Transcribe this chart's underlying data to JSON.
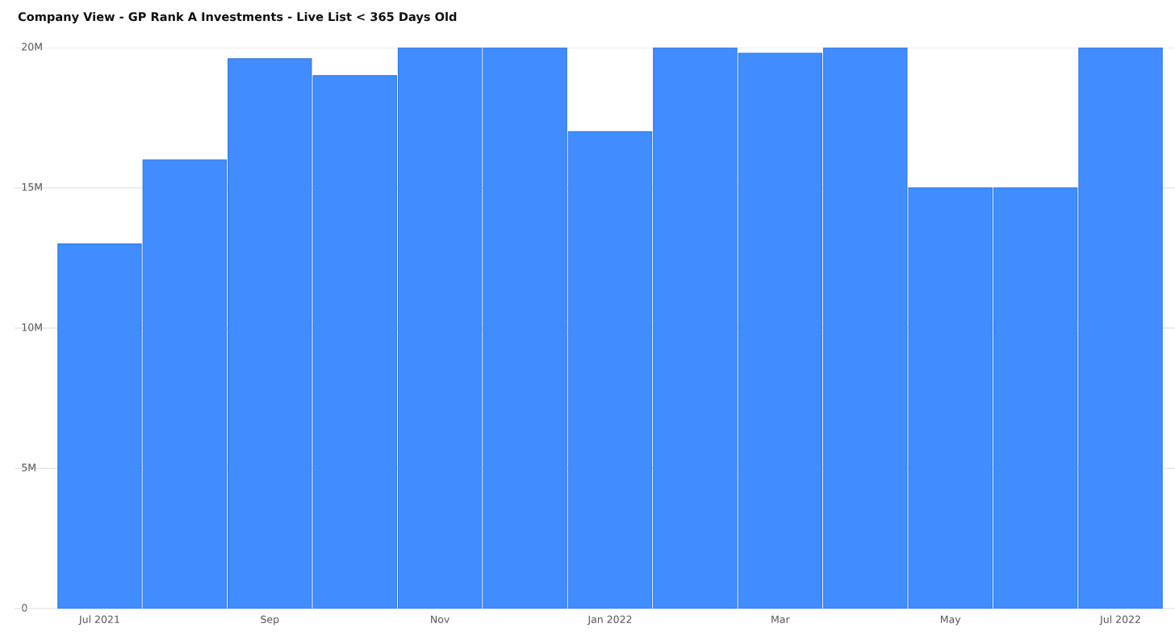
{
  "chart_data": {
    "type": "bar",
    "title": "Company View - GP Rank A Investments - Live List < 365 Days Old",
    "categories": [
      "Jul 2021",
      null,
      "Sep",
      null,
      "Nov",
      null,
      "Jan 2022",
      null,
      "Mar",
      null,
      "May",
      null,
      "Jul 2022"
    ],
    "values": [
      13000000,
      16000000,
      19600000,
      19000000,
      20000000,
      20000000,
      17000000,
      20000000,
      19800000,
      20000000,
      15000000,
      15000000,
      20000000
    ],
    "color": "#418cff",
    "ylim": [
      0,
      20000000
    ],
    "yticks": [
      0,
      {
        "value": 5000000,
        "label": "5M"
      },
      {
        "value": 10000000,
        "label": "10M"
      },
      {
        "value": 15000000,
        "label": "15M"
      },
      {
        "value": 20000000,
        "label": "20M"
      }
    ],
    "grid": "y"
  }
}
